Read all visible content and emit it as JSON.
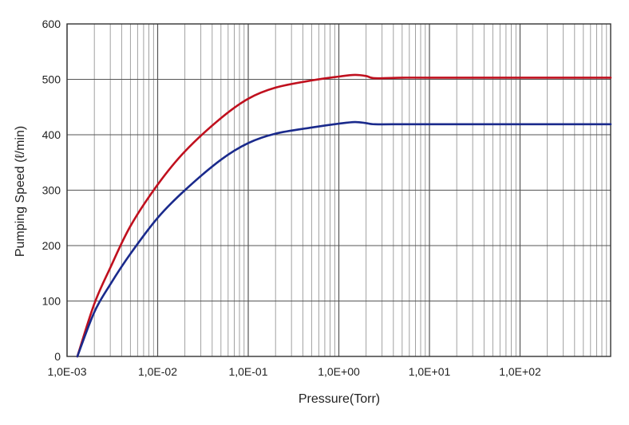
{
  "chart_data": {
    "type": "line",
    "title": "",
    "xlabel": "Pressure(Torr)",
    "ylabel": "Pumping Speed (ℓ/min)",
    "x_scale": "log",
    "xlim": [
      0.001,
      1000
    ],
    "ylim": [
      0,
      600
    ],
    "x_ticks": [
      0.001,
      0.01,
      0.1,
      1,
      10,
      100
    ],
    "x_tick_labels": [
      "1,0E-03",
      "1,0E-02",
      "1,0E-01",
      "1,0E+00",
      "1,0E+01",
      "1,0E+02"
    ],
    "y_ticks": [
      0,
      100,
      200,
      300,
      400,
      500,
      600
    ],
    "y_tick_labels": [
      "0",
      "100",
      "200",
      "300",
      "400",
      "500",
      "600"
    ],
    "grid": true,
    "legend": "none",
    "series": [
      {
        "color": "#c0101e",
        "x": [
          0.0013,
          0.002,
          0.003,
          0.005,
          0.01,
          0.02,
          0.05,
          0.1,
          0.2,
          0.5,
          1,
          1.5,
          2,
          2.5,
          5,
          10,
          100,
          1000
        ],
        "y": [
          0,
          95,
          160,
          235,
          310,
          370,
          430,
          465,
          485,
          498,
          505,
          508,
          506,
          502,
          503,
          503,
          503,
          503
        ]
      },
      {
        "color": "#1a2a8c",
        "x": [
          0.0013,
          0.002,
          0.003,
          0.005,
          0.01,
          0.02,
          0.05,
          0.1,
          0.2,
          0.5,
          1,
          1.5,
          2,
          2.5,
          5,
          10,
          100,
          1000
        ],
        "y": [
          0,
          80,
          130,
          185,
          250,
          300,
          355,
          385,
          402,
          413,
          420,
          423,
          421,
          419,
          419,
          419,
          419,
          419
        ]
      }
    ]
  }
}
